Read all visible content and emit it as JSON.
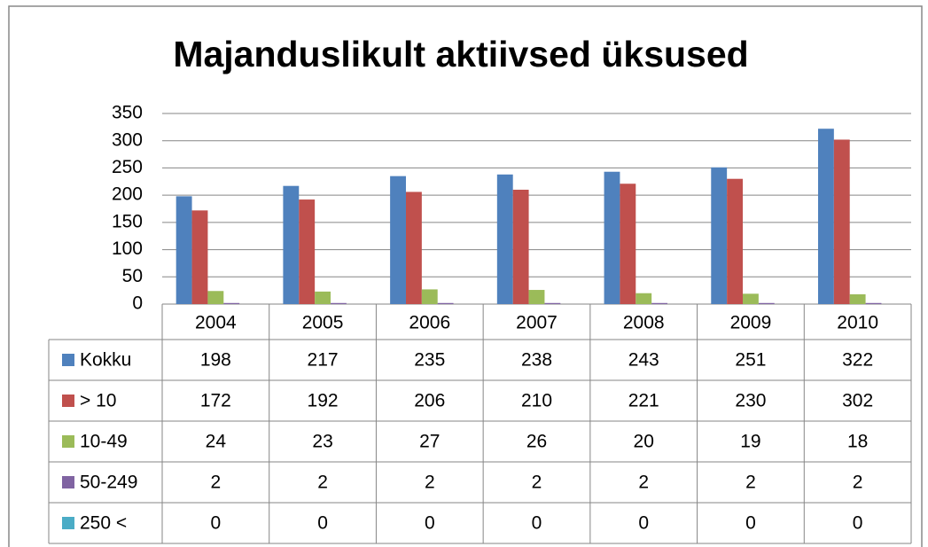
{
  "chart_data": {
    "type": "bar",
    "title": "Majanduslikult aktiivsed üksused",
    "categories": [
      "2004",
      "2005",
      "2006",
      "2007",
      "2008",
      "2009",
      "2010"
    ],
    "series": [
      {
        "name": "Kokku",
        "color": "#4f81bd",
        "values": [
          198,
          217,
          235,
          238,
          243,
          251,
          322
        ]
      },
      {
        "name": "> 10",
        "color": "#c0504d",
        "values": [
          172,
          192,
          206,
          210,
          221,
          230,
          302
        ]
      },
      {
        "name": "10-49",
        "color": "#9bbb59",
        "values": [
          24,
          23,
          27,
          26,
          20,
          19,
          18
        ]
      },
      {
        "name": "50-249",
        "color": "#8064a2",
        "values": [
          2,
          2,
          2,
          2,
          2,
          2,
          2
        ]
      },
      {
        "name": "250 <",
        "color": "#4bacc6",
        "values": [
          0,
          0,
          0,
          0,
          0,
          0,
          0
        ]
      }
    ],
    "ylim": [
      0,
      350
    ],
    "yticks": [
      0,
      50,
      100,
      150,
      200,
      250,
      300,
      350
    ],
    "grid": true
  }
}
